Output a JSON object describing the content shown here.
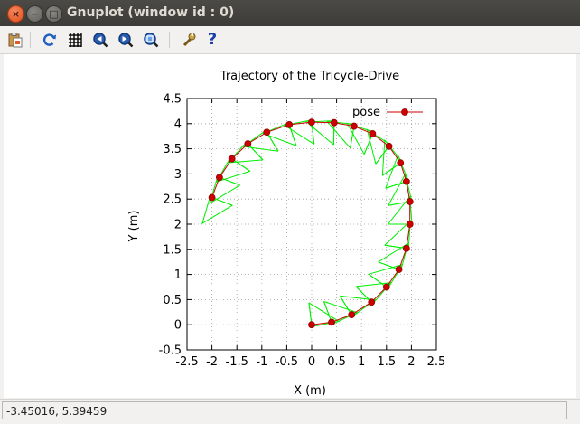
{
  "window": {
    "title": "Gnuplot (window id : 0)",
    "close_glyph": "×",
    "minimize_glyph": "−",
    "maximize_glyph": "□"
  },
  "toolbar": {
    "items": [
      {
        "name": "copy-to-clipboard",
        "icon": "clipboard-icon"
      },
      {
        "name": "replot",
        "icon": "refresh-icon"
      },
      {
        "name": "toggle-grid",
        "icon": "grid-icon"
      },
      {
        "name": "previous-zoom",
        "icon": "zoom-previous-icon"
      },
      {
        "name": "next-zoom",
        "icon": "zoom-next-icon"
      },
      {
        "name": "autoscale",
        "icon": "zoom-autoscale-icon"
      },
      {
        "name": "preferences",
        "icon": "wrench-icon"
      },
      {
        "name": "help",
        "icon": "help-icon"
      }
    ],
    "help_glyph": "?"
  },
  "status": {
    "coordinates": "-3.45016,  5.39459"
  },
  "chart_data": {
    "type": "line",
    "title": "Trajectory of the Tricycle-Drive",
    "xlabel": "X (m)",
    "ylabel": "Y (m)",
    "xlim": [
      -2.5,
      2.5
    ],
    "ylim": [
      -0.5,
      4.5
    ],
    "xticks": [
      -2.5,
      -2,
      -1.5,
      -1,
      -0.5,
      0,
      0.5,
      1,
      1.5,
      2,
      2.5
    ],
    "yticks": [
      -0.5,
      0,
      0.5,
      1,
      1.5,
      2,
      2.5,
      3,
      3.5,
      4,
      4.5
    ],
    "x_tick_labels": [
      "-2.5",
      "-2",
      "-1.5",
      "-1",
      "-0.5",
      "0",
      "0.5",
      "1",
      "1.5",
      "2",
      "2.5"
    ],
    "y_tick_labels": [
      "-0.5",
      "0",
      "0.5",
      "1",
      "1.5",
      "2",
      "2.5",
      "3",
      "3.5",
      "4",
      "4.5"
    ],
    "grid": true,
    "legend": "top-right",
    "colors": {
      "pose": "#cc0000",
      "robot_body": "#00ee00"
    },
    "series": [
      {
        "name": "pose",
        "x": [
          0,
          0.4,
          0.8,
          1.2,
          1.5,
          1.75,
          1.9,
          1.97,
          1.97,
          1.9,
          1.78,
          1.55,
          1.22,
          0.85,
          0.45,
          0,
          -0.45,
          -0.9,
          -1.28,
          -1.6,
          -1.85,
          -2.0
        ],
        "y": [
          0,
          0.05,
          0.2,
          0.45,
          0.75,
          1.1,
          1.52,
          2.0,
          2.45,
          2.85,
          3.22,
          3.55,
          3.8,
          3.95,
          4.02,
          4.03,
          3.98,
          3.83,
          3.6,
          3.3,
          2.93,
          2.53
        ]
      }
    ]
  }
}
